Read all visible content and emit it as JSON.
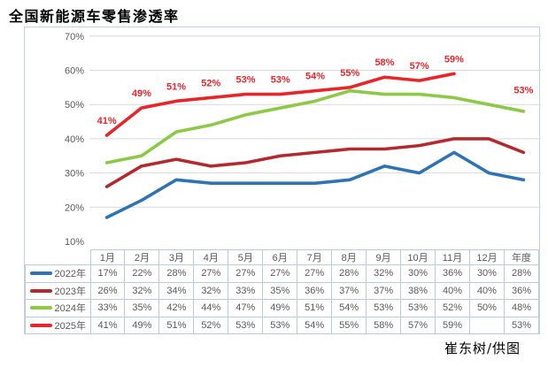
{
  "title": "全国新能源车零售渗透率",
  "credit": "崔东树/供图",
  "chart_data": {
    "type": "line",
    "title": "全国新能源车零售渗透率",
    "categories": [
      "1月",
      "2月",
      "3月",
      "4月",
      "5月",
      "6月",
      "7月",
      "8月",
      "9月",
      "10月",
      "11月",
      "12月",
      "年度"
    ],
    "yticks": [
      10,
      20,
      30,
      40,
      50,
      60,
      70
    ],
    "ytick_suffix": "%",
    "ylim": [
      10,
      70
    ],
    "grid": "horizontal-only",
    "gridline_color": "#D9D9D9",
    "axis_label_color": "#595959",
    "data_label_color": "#E8252B",
    "table_border_color": "#B9CBE3",
    "legend_position": "data-table-left-column",
    "series": [
      {
        "name": "2022年",
        "color": "#2E74B5",
        "values": [
          17,
          22,
          28,
          27,
          27,
          27,
          27,
          28,
          32,
          30,
          36,
          30,
          28
        ],
        "data_labels": false
      },
      {
        "name": "2023年",
        "color": "#B4292E",
        "values": [
          26,
          32,
          34,
          32,
          33,
          35,
          36,
          37,
          37,
          38,
          40,
          40,
          36
        ],
        "data_labels": false
      },
      {
        "name": "2024年",
        "color": "#8CC944",
        "values": [
          33,
          35,
          42,
          44,
          47,
          49,
          51,
          54,
          53,
          53,
          52,
          50,
          48
        ],
        "data_labels": false
      },
      {
        "name": "2025年",
        "color": "#E8252B",
        "values": [
          41,
          49,
          51,
          52,
          53,
          53,
          54,
          55,
          58,
          57,
          59,
          null,
          53
        ],
        "data_labels": true
      }
    ]
  }
}
